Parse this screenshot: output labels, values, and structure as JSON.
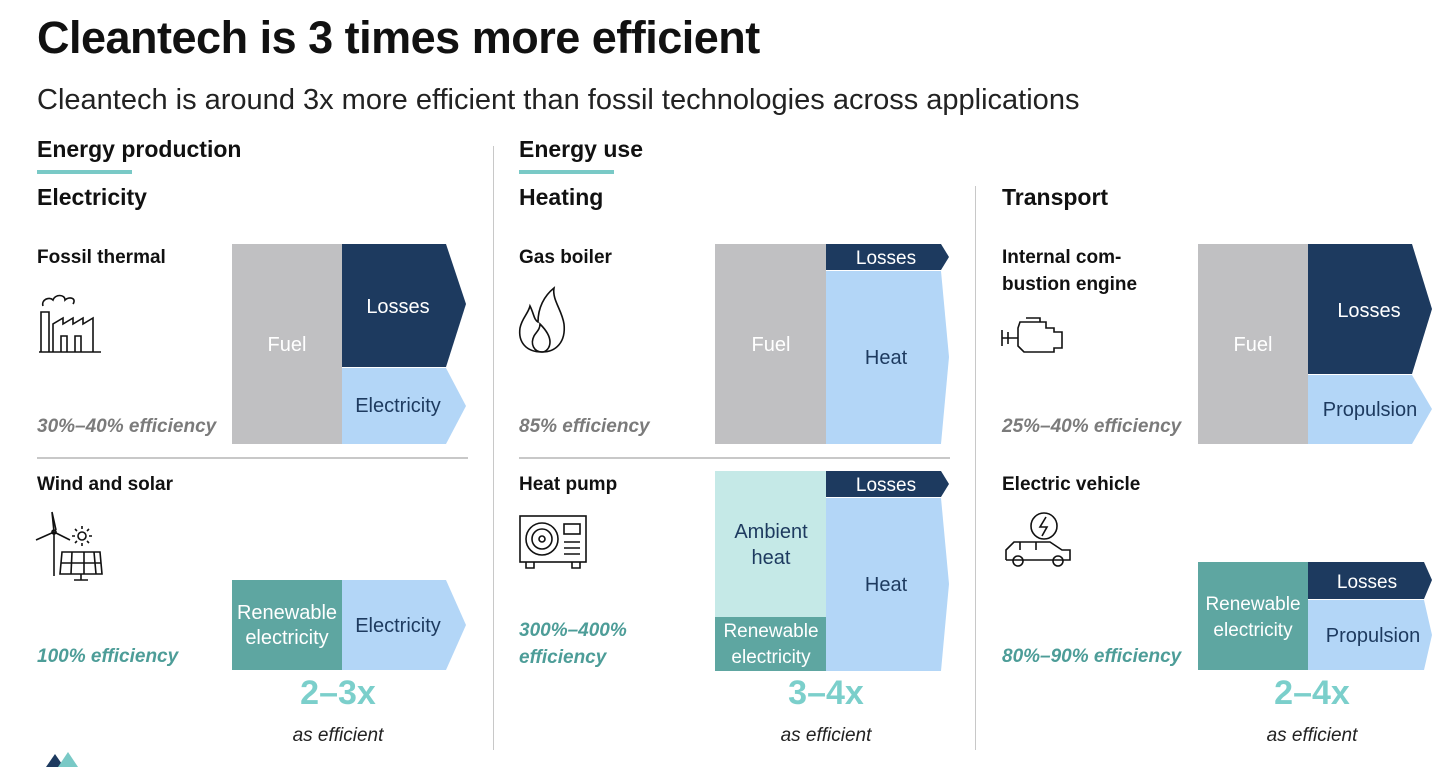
{
  "title": "Cleantech is 3 times more efficient",
  "subtitle": "Cleantech is around 3x more efficient than fossil technologies across applications",
  "sections": {
    "production": "Energy production",
    "use": "Energy use"
  },
  "colors": {
    "fuel": "#c0c0c2",
    "losses": "#1d3a5f",
    "useful": "#b3d6f7",
    "renewable": "#5ea6a1",
    "ambient": "#c5e9e7",
    "accent": "#79c9c6"
  },
  "columns": [
    {
      "category": "Electricity",
      "fossil": {
        "label": "Fossil thermal",
        "icon": "factory-icon",
        "efficiency": "30%–40% efficiency",
        "blocks": {
          "input": "Fuel",
          "losses": "Losses",
          "output": "Electricity"
        }
      },
      "clean": {
        "label": "Wind and solar",
        "icon": "wind-solar-icon",
        "efficiency": "100% efficiency",
        "blocks": {
          "input": "Renewable electricity",
          "output": "Electricity"
        }
      },
      "multiplier": "2–3x",
      "multiplier_caption": "as efficient"
    },
    {
      "category": "Heating",
      "fossil": {
        "label": "Gas boiler",
        "icon": "flame-icon",
        "efficiency": "85% efficiency",
        "blocks": {
          "input": "Fuel",
          "losses": "Losses",
          "output": "Heat"
        }
      },
      "clean": {
        "label": "Heat pump",
        "icon": "heat-pump-icon",
        "efficiency": "300%–400% efficiency",
        "blocks": {
          "ambient": "Ambient heat",
          "input": "Renewable electricity",
          "losses": "Losses",
          "output": "Heat"
        }
      },
      "multiplier": "3–4x",
      "multiplier_caption": "as efficient"
    },
    {
      "category": "Transport",
      "fossil": {
        "label": "Internal com-bustion engine",
        "label_lines": [
          "Internal com-",
          "bustion engine"
        ],
        "icon": "engine-icon",
        "efficiency": "25%–40% efficiency",
        "blocks": {
          "input": "Fuel",
          "losses": "Losses",
          "output": "Propulsion"
        }
      },
      "clean": {
        "label": "Electric vehicle",
        "icon": "electric-car-icon",
        "efficiency": "80%–90% efficiency",
        "blocks": {
          "input": "Renewable electricity",
          "losses": "Losses",
          "output": "Propulsion"
        }
      },
      "multiplier": "2–4x",
      "multiplier_caption": "as efficient"
    }
  ]
}
